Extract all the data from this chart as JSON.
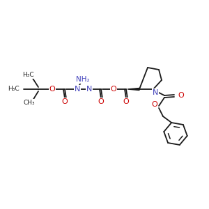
{
  "bg_color": "#ffffff",
  "bond_color": "#1a1a1a",
  "oxygen_color": "#cc0000",
  "nitrogen_color": "#4040bb",
  "figsize": [
    3.0,
    3.0
  ],
  "dpi": 100,
  "xlim": [
    0,
    300
  ],
  "ylim": [
    0,
    300
  ]
}
